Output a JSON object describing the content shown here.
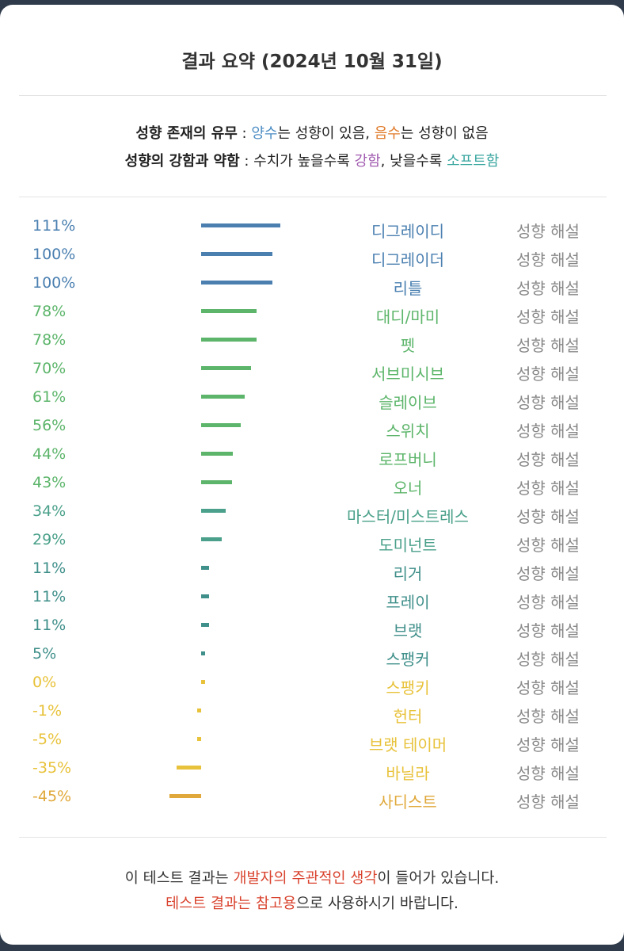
{
  "title": "결과 요약 (2024년 10월 31일)",
  "legend": {
    "line1": {
      "label": "성향 존재의 유무",
      "sep": " : ",
      "pos_word": "양수",
      "pos_rest": "는 성향이 있음, ",
      "neg_word": "음수",
      "neg_rest": "는 성향이 없음"
    },
    "line2": {
      "label": "성향의 강함과 약함",
      "sep": " : 수치가 높을수록 ",
      "strong_word": "강함",
      "mid": ", 낮을수록 ",
      "soft_word": "소프트함"
    }
  },
  "rows": [
    {
      "percent": "111%",
      "value": 111,
      "name": "디그레이디",
      "link": "성향 해설",
      "color": "#4a7fb0"
    },
    {
      "percent": "100%",
      "value": 100,
      "name": "디그레이더",
      "link": "성향 해설",
      "color": "#4a7fb0"
    },
    {
      "percent": "100%",
      "value": 100,
      "name": "리틀",
      "link": "성향 해설",
      "color": "#4a7fb0"
    },
    {
      "percent": "78%",
      "value": 78,
      "name": "대디/마미",
      "link": "성향 해설",
      "color": "#5cb56a"
    },
    {
      "percent": "78%",
      "value": 78,
      "name": "펫",
      "link": "성향 해설",
      "color": "#5cb56a"
    },
    {
      "percent": "70%",
      "value": 70,
      "name": "서브미시브",
      "link": "성향 해설",
      "color": "#5cb56a"
    },
    {
      "percent": "61%",
      "value": 61,
      "name": "슬레이브",
      "link": "성향 해설",
      "color": "#5cb56a"
    },
    {
      "percent": "56%",
      "value": 56,
      "name": "스위치",
      "link": "성향 해설",
      "color": "#5cb56a"
    },
    {
      "percent": "44%",
      "value": 44,
      "name": "로프버니",
      "link": "성향 해설",
      "color": "#5cb56a"
    },
    {
      "percent": "43%",
      "value": 43,
      "name": "오너",
      "link": "성향 해설",
      "color": "#5cb56a"
    },
    {
      "percent": "34%",
      "value": 34,
      "name": "마스터/미스트레스",
      "link": "성향 해설",
      "color": "#4aa08a"
    },
    {
      "percent": "29%",
      "value": 29,
      "name": "도미넌트",
      "link": "성향 해설",
      "color": "#4aa08a"
    },
    {
      "percent": "11%",
      "value": 11,
      "name": "리거",
      "link": "성향 해설",
      "color": "#3f8f8a"
    },
    {
      "percent": "11%",
      "value": 11,
      "name": "프레이",
      "link": "성향 해설",
      "color": "#3f8f8a"
    },
    {
      "percent": "11%",
      "value": 11,
      "name": "브랫",
      "link": "성향 해설",
      "color": "#3f8f8a"
    },
    {
      "percent": "5%",
      "value": 5,
      "name": "스팽커",
      "link": "성향 해설",
      "color": "#3f8f8a"
    },
    {
      "percent": "0%",
      "value": 0,
      "name": "스팽키",
      "link": "성향 해설",
      "color": "#e8c23a"
    },
    {
      "percent": "-1%",
      "value": -1,
      "name": "헌터",
      "link": "성향 해설",
      "color": "#e8c23a"
    },
    {
      "percent": "-5%",
      "value": -5,
      "name": "브랫 테이머",
      "link": "성향 해설",
      "color": "#e8c23a"
    },
    {
      "percent": "-35%",
      "value": -35,
      "name": "바닐라",
      "link": "성향 해설",
      "color": "#e8c23a"
    },
    {
      "percent": "-45%",
      "value": -45,
      "name": "사디스트",
      "link": "성향 해설",
      "color": "#e0a83a"
    }
  ],
  "footer": {
    "l1_a": "이 테스트 결과는 ",
    "l1_red": "개발자의 주관적인 생각",
    "l1_b": "이 들어가 있습니다.",
    "l2_red": "테스트 결과는 참고용",
    "l2_b": "으로 사용하시기 바랍니다."
  }
}
